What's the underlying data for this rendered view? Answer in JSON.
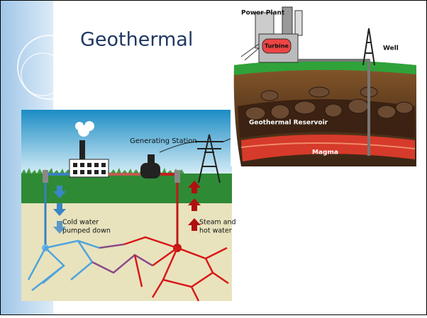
{
  "slide": {
    "title": "Geothermal",
    "plant_diagram": {
      "labels": [
        "Power Plant",
        "Turbine",
        "Well",
        "Geothermal Reservoir",
        "Magma"
      ]
    },
    "station_diagram": {
      "station_label": "Generating Station",
      "cold_label": [
        "Cold water",
        "pumped down"
      ],
      "hot_label": [
        "Steam and",
        "hot water"
      ]
    }
  }
}
